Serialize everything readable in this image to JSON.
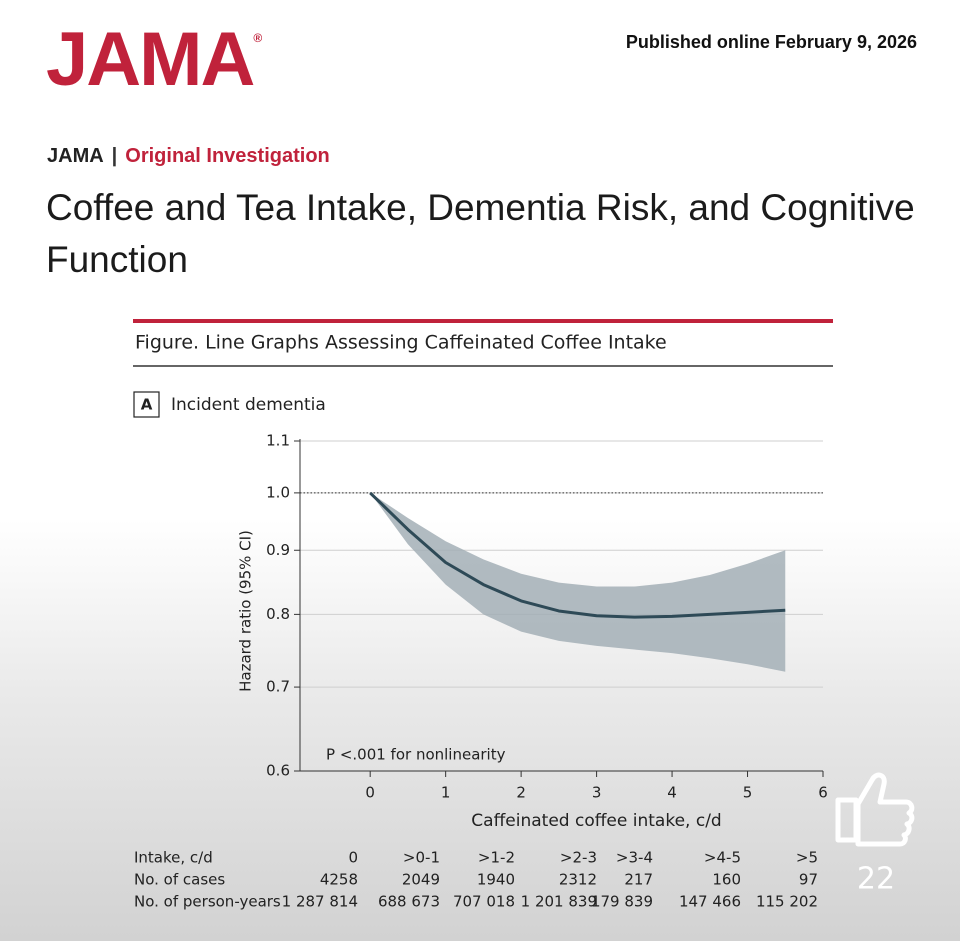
{
  "header": {
    "logo": "JAMA",
    "logo_mark": "®",
    "published": "Published online February 9, 2026",
    "journal": "JAMA",
    "separator": "|",
    "section": "Original Investigation",
    "title": "Coffee and Tea Intake, Dementia Risk, and Cognitive Function"
  },
  "figure": {
    "title": "Figure. Line Graphs Assessing Caffeinated Coffee Intake",
    "panel": "A",
    "panel_title": "Incident dementia"
  },
  "chart_data": {
    "type": "line",
    "xlabel": "Caffeinated coffee intake, c/d",
    "ylabel": "Hazard ratio (95% CI)",
    "annotation": "P <.001 for nonlinearity",
    "x": [
      0,
      0.5,
      1,
      1.5,
      2,
      2.5,
      3,
      3.5,
      4,
      4.5,
      5,
      5.5
    ],
    "values": [
      1.0,
      0.935,
      0.88,
      0.845,
      0.82,
      0.805,
      0.798,
      0.796,
      0.797,
      0.8,
      0.803,
      0.806
    ],
    "ci_upper": [
      1.0,
      0.955,
      0.915,
      0.885,
      0.862,
      0.848,
      0.842,
      0.842,
      0.848,
      0.86,
      0.878,
      0.9
    ],
    "ci_lower": [
      1.0,
      0.91,
      0.845,
      0.8,
      0.775,
      0.762,
      0.755,
      0.75,
      0.745,
      0.738,
      0.73,
      0.72
    ],
    "color": "#2e4a57",
    "band_color": "#a3afb6",
    "xlim": [
      -0.93,
      6
    ],
    "xticks": [
      0,
      1,
      2,
      3,
      4,
      5,
      6
    ],
    "ylim": [
      0.6,
      1.1
    ],
    "yticks": [
      0.6,
      0.7,
      0.8,
      0.9,
      {
        "value": 1,
        "label": "1.0"
      },
      1.1
    ],
    "log_y": true,
    "grid": true,
    "reference_line": 1
  },
  "table": {
    "rows": [
      [
        "Intake, c/d",
        "0",
        ">0-1",
        ">1-2",
        ">2-3",
        ">3-4",
        ">4-5",
        ">5"
      ],
      [
        "No. of cases",
        "4258",
        "2049",
        "1940",
        "2312",
        "217",
        "160",
        "97"
      ],
      [
        "No. of person-years",
        "1 287 814",
        "688 673",
        "707 018",
        "1 201 839",
        "179 839",
        "147 466",
        "115 202"
      ]
    ]
  },
  "likes": "22"
}
